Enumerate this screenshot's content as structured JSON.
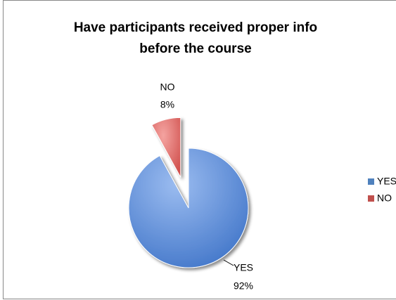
{
  "chart_data": {
    "type": "pie",
    "title": [
      "Have participants received proper info",
      "before the course"
    ],
    "categories": [
      "YES",
      "NO"
    ],
    "values": [
      92,
      8
    ],
    "value_labels": [
      "92%",
      "8%"
    ],
    "colors": [
      "#4f81bd",
      "#c0504d"
    ],
    "legend": "right"
  }
}
